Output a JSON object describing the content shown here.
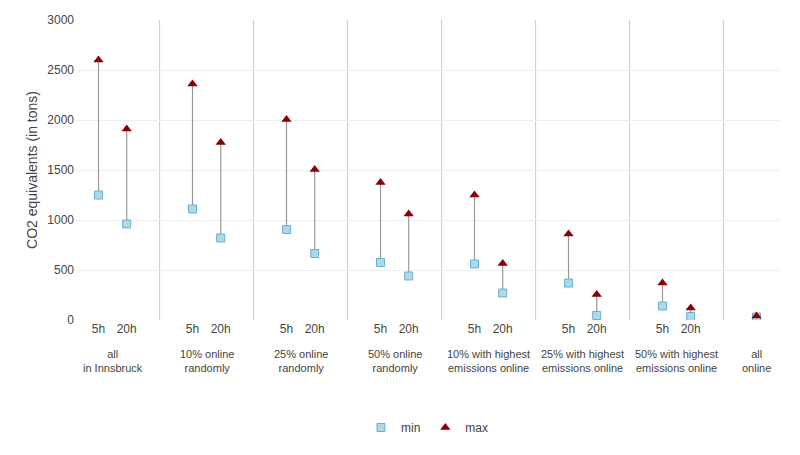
{
  "chart_data": {
    "type": "dumbbell",
    "ylabel": "CO2 equivalents (in tons)",
    "ylim": [
      0,
      3000
    ],
    "yticks": [
      0,
      500,
      1000,
      1500,
      2000,
      2500,
      3000
    ],
    "grid": true,
    "legend": "bottom",
    "series": [
      {
        "name": "min",
        "color": "#add8e6",
        "marker": "square"
      },
      {
        "name": "max",
        "color": "#8b0000",
        "marker": "triangle-up"
      }
    ],
    "groups": [
      {
        "label": "all\nin Innsbruck",
        "categories": [
          "5h",
          "20h"
        ],
        "min": [
          1250,
          960
        ],
        "max": [
          2600,
          1910
        ]
      },
      {
        "label": "10% online\nrandomly",
        "categories": [
          "5h",
          "20h"
        ],
        "min": [
          1110,
          820
        ],
        "max": [
          2360,
          1775
        ]
      },
      {
        "label": "25% online\nrandomly",
        "categories": [
          "5h",
          "20h"
        ],
        "min": [
          905,
          665
        ],
        "max": [
          2005,
          1505
        ]
      },
      {
        "label": "50% online\nrandomly",
        "categories": [
          "5h",
          "20h"
        ],
        "min": [
          575,
          440
        ],
        "max": [
          1375,
          1060
        ]
      },
      {
        "label": "10% with highest\nemissions online",
        "categories": [
          "5h",
          "20h"
        ],
        "min": [
          560,
          270
        ],
        "max": [
          1250,
          565
        ]
      },
      {
        "label": "25% with highest\nemissions online",
        "categories": [
          "5h",
          "20h"
        ],
        "min": [
          370,
          45
        ],
        "max": [
          860,
          255
        ]
      },
      {
        "label": "50% with highest\nemissions online",
        "categories": [
          "5h",
          "20h"
        ],
        "min": [
          140,
          35
        ],
        "max": [
          370,
          120
        ]
      },
      {
        "label": "all\nonline",
        "categories": [
          null
        ],
        "min": [
          30
        ],
        "max": [
          40
        ]
      }
    ]
  }
}
